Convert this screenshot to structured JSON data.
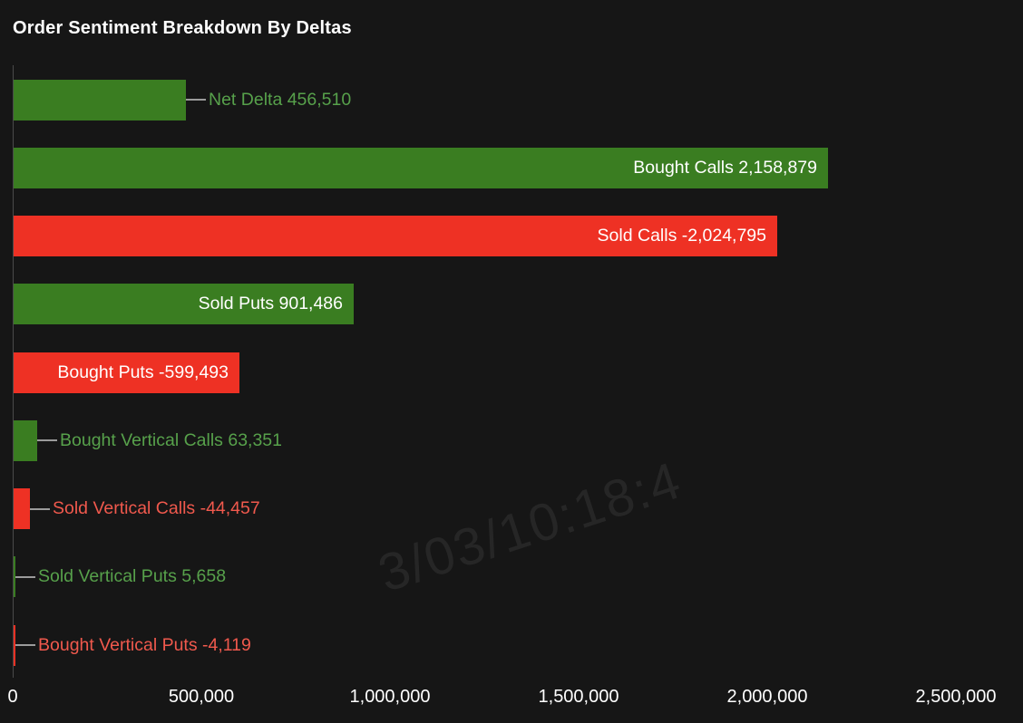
{
  "colors": {
    "background": "#161616",
    "green_bar": "#3a7d21",
    "red_bar": "#ee3124",
    "green_label": "#57a14b",
    "red_label": "#f0594d",
    "inside_label": "#ffffff",
    "axis_line": "#4a4a4a",
    "leader_line": "#9b9b9b",
    "tick_label": "#ffffff"
  },
  "watermark_text": "3/03/10:18:4",
  "chart_data": {
    "type": "bar",
    "orientation": "horizontal",
    "title": "Order Sentiment Breakdown By Deltas",
    "x_axis": {
      "min": 0,
      "max": 2500000,
      "ticks": [
        0,
        500000,
        1000000,
        1500000,
        2000000,
        2500000
      ],
      "tick_labels": [
        "0",
        "500,000",
        "1,000,000",
        "1,500,000",
        "2,000,000",
        "2,500,000"
      ]
    },
    "legend": "none",
    "grid": false,
    "bars": [
      {
        "label": "Net Delta",
        "value": 456510,
        "display": "Net Delta 456,510",
        "sentiment": "positive",
        "label_position": "outside"
      },
      {
        "label": "Bought Calls",
        "value": 2158879,
        "display": "Bought Calls 2,158,879",
        "sentiment": "positive",
        "label_position": "inside"
      },
      {
        "label": "Sold Calls",
        "value": -2024795,
        "display": "Sold Calls -2,024,795",
        "sentiment": "negative",
        "label_position": "inside"
      },
      {
        "label": "Sold Puts",
        "value": 901486,
        "display": "Sold Puts 901,486",
        "sentiment": "positive",
        "label_position": "inside"
      },
      {
        "label": "Bought Puts",
        "value": -599493,
        "display": "Bought Puts -599,493",
        "sentiment": "negative",
        "label_position": "inside"
      },
      {
        "label": "Bought Vertical Calls",
        "value": 63351,
        "display": "Bought Vertical Calls 63,351",
        "sentiment": "positive",
        "label_position": "outside"
      },
      {
        "label": "Sold Vertical Calls",
        "value": -44457,
        "display": "Sold Vertical Calls -44,457",
        "sentiment": "negative",
        "label_position": "outside"
      },
      {
        "label": "Sold Vertical Puts",
        "value": 5658,
        "display": "Sold Vertical Puts 5,658",
        "sentiment": "positive",
        "label_position": "outside"
      },
      {
        "label": "Bought Vertical Puts",
        "value": -4119,
        "display": "Bought Vertical Puts -4,119",
        "sentiment": "negative",
        "label_position": "outside"
      }
    ]
  }
}
